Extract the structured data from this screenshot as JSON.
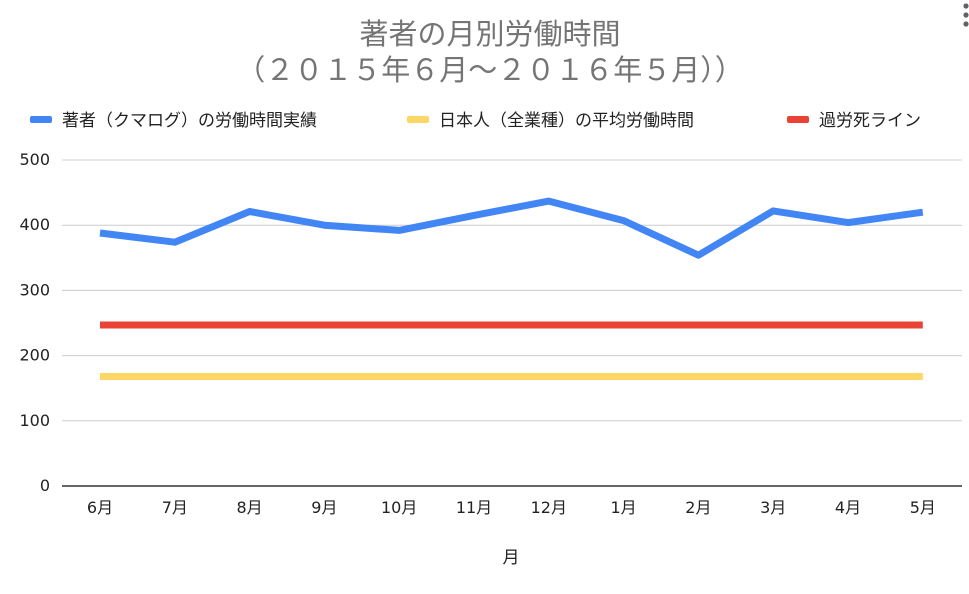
{
  "chart_data": {
    "type": "line",
    "title_line1": "著者の月別労働時間",
    "title_line2": "（２０１５年６月～２０１６年５月））",
    "xlabel": "月",
    "ylabel": "",
    "categories": [
      "6月",
      "7月",
      "8月",
      "9月",
      "10月",
      "11月",
      "12月",
      "1月",
      "2月",
      "3月",
      "4月",
      "5月"
    ],
    "ylim": [
      0,
      500
    ],
    "yticks": [
      0,
      100,
      200,
      300,
      400,
      500
    ],
    "grid": true,
    "legend_position": "top",
    "series": [
      {
        "name": "著者（クマログ）の労働時間実績",
        "color": "#4285f4",
        "values": [
          388,
          374,
          421,
          400,
          392,
          415,
          437,
          407,
          354,
          422,
          404,
          420
        ]
      },
      {
        "name": "日本人（全業種）の平均労働時間",
        "color": "#fdd663",
        "values": [
          168,
          168,
          168,
          168,
          168,
          168,
          168,
          168,
          168,
          168,
          168,
          168
        ]
      },
      {
        "name": "過労死ライン",
        "color": "#ea4335",
        "values": [
          247,
          247,
          247,
          247,
          247,
          247,
          247,
          247,
          247,
          247,
          247,
          247
        ]
      }
    ]
  },
  "menu": {
    "icon": "more-vert-icon"
  }
}
